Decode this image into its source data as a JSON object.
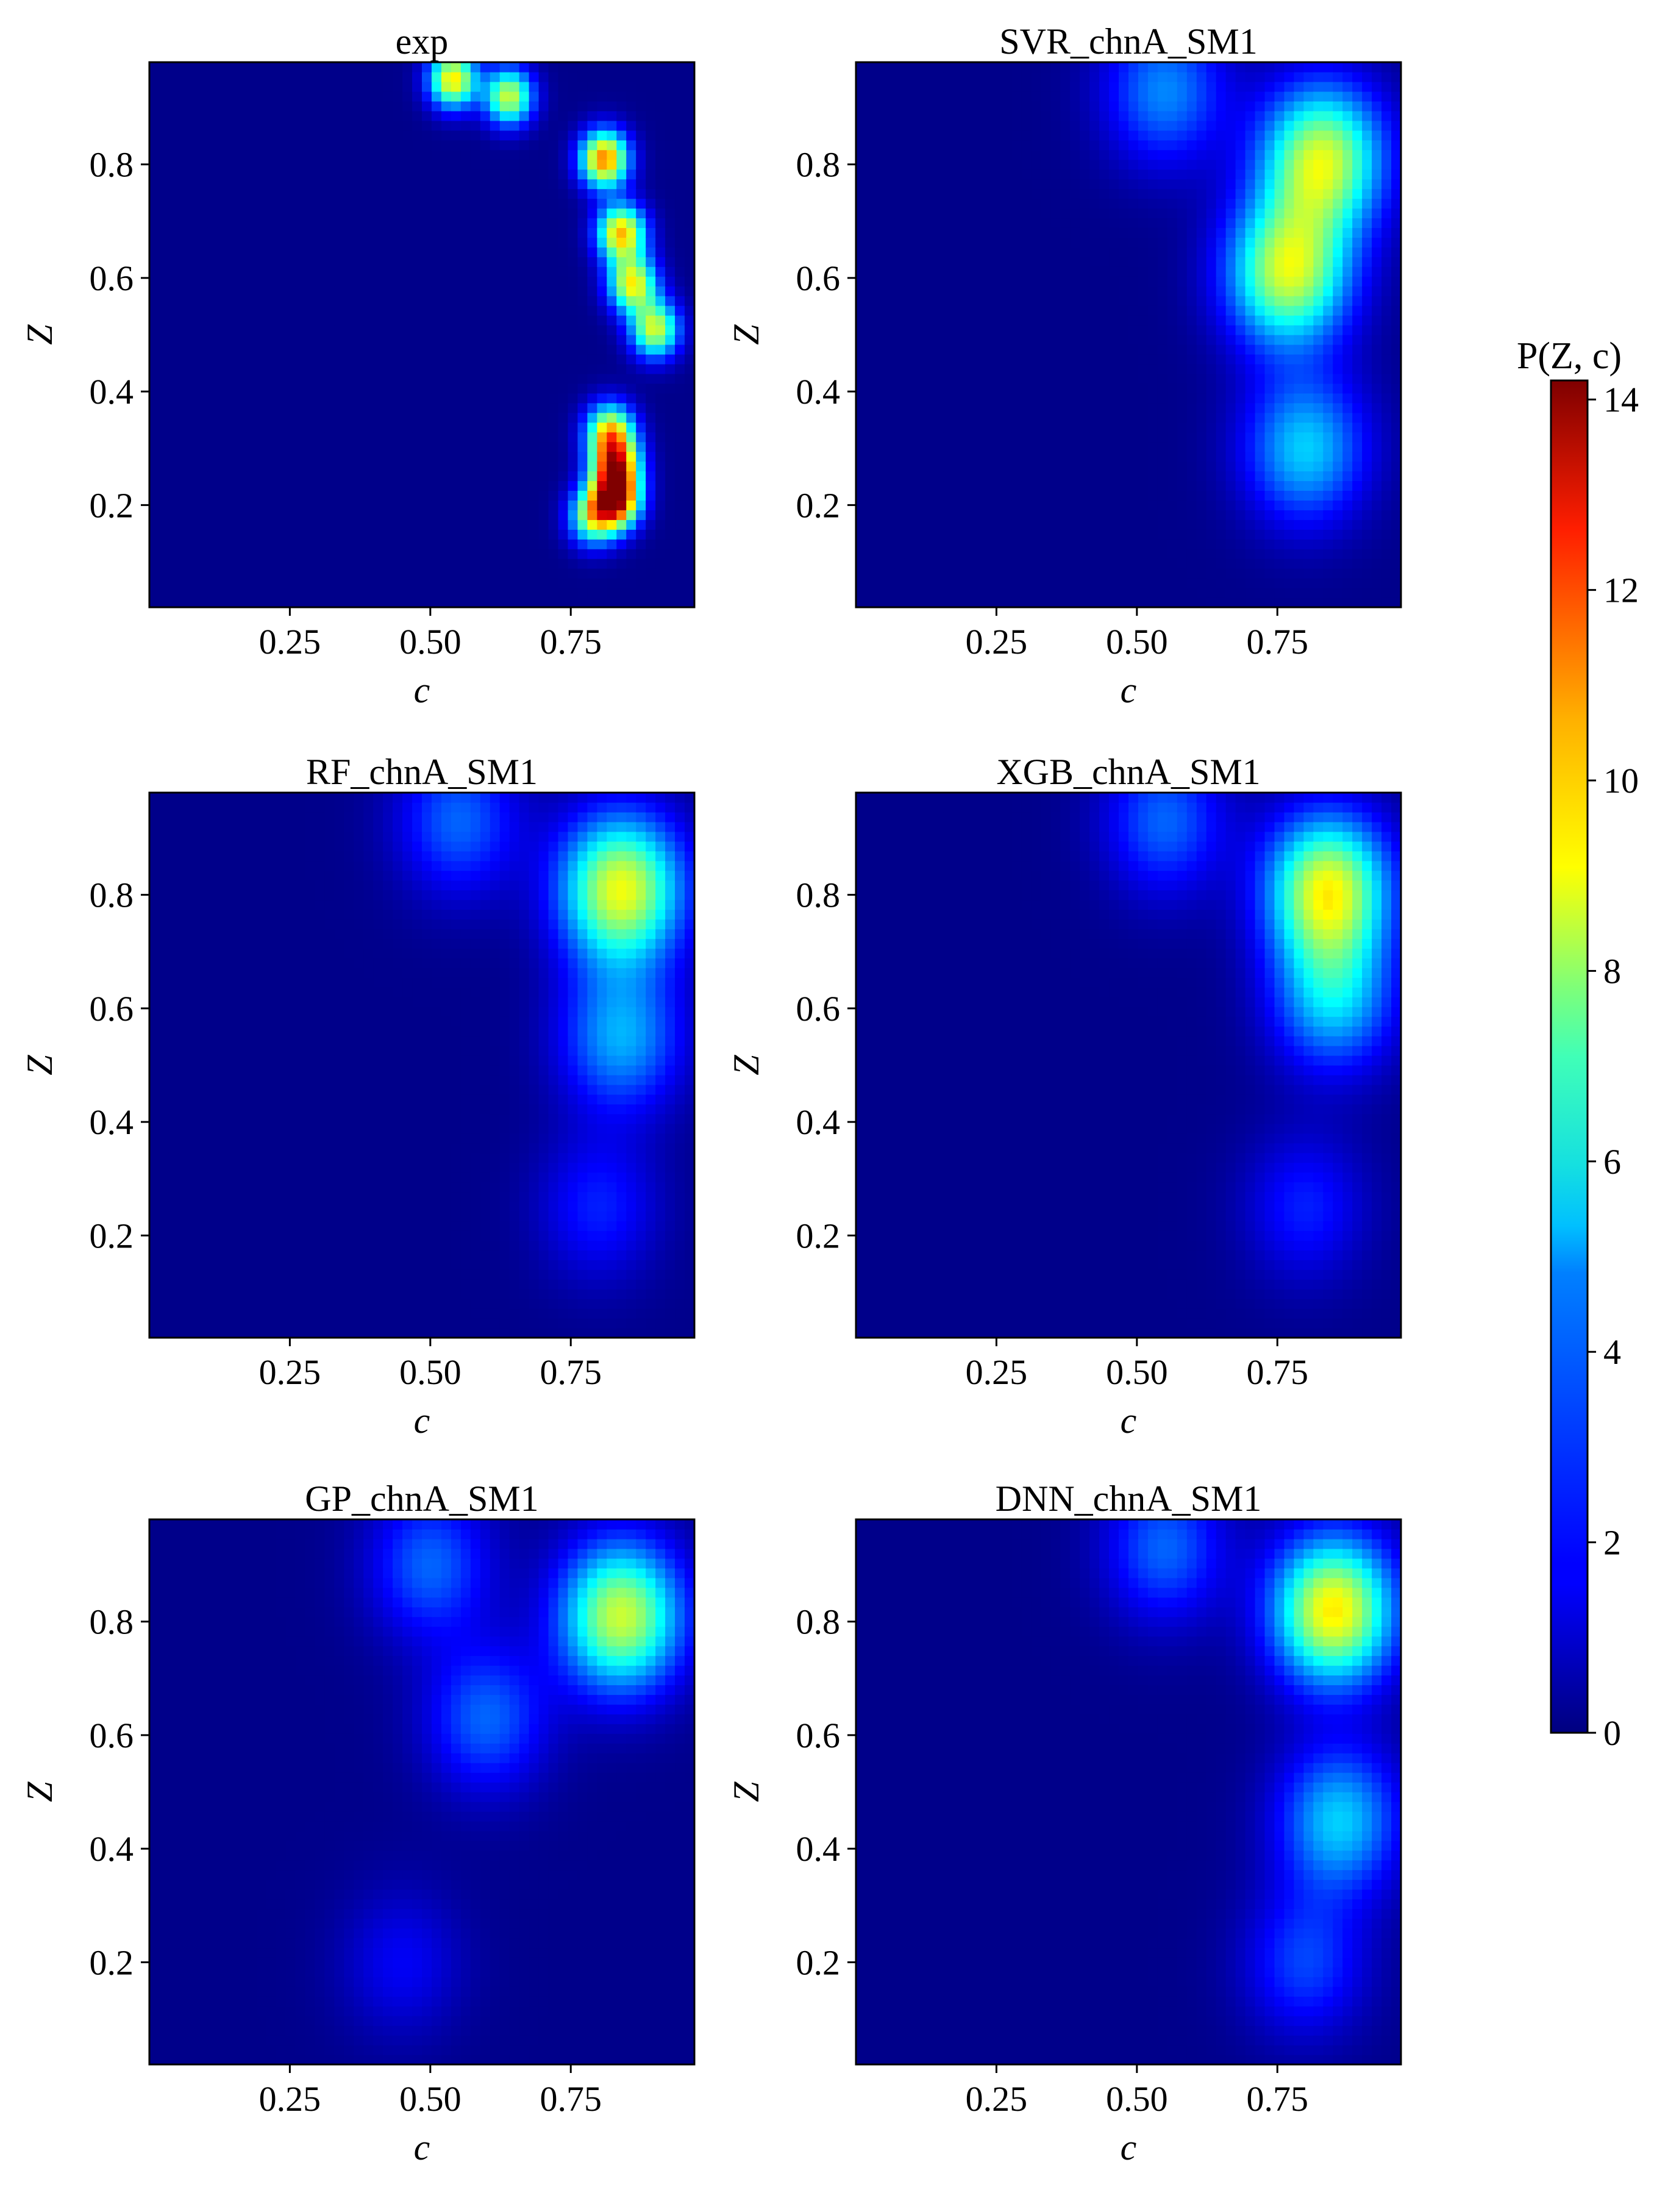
{
  "chart_data": {
    "type": "heatmap",
    "panel_xlabel": "c",
    "panel_ylabel": "Z",
    "xlim": [
      0.0,
      0.97
    ],
    "ylim": [
      0.02,
      0.98
    ],
    "xticks": [
      "0.25",
      "0.50",
      "0.75"
    ],
    "xtick_values": [
      0.25,
      0.5,
      0.75
    ],
    "yticks": [
      "0.2",
      "0.4",
      "0.6",
      "0.8"
    ],
    "ytick_values": [
      0.2,
      0.4,
      0.6,
      0.8
    ],
    "colormap": "jet",
    "colorbar": {
      "label": "P(Z, c)",
      "min": 0,
      "max": 14.2,
      "ticks": [
        "0",
        "2",
        "4",
        "6",
        "8",
        "10",
        "12",
        "14"
      ],
      "tick_values": [
        0,
        2,
        4,
        6,
        8,
        10,
        12,
        14
      ]
    },
    "grid": false,
    "panels": [
      {
        "title": "exp",
        "peaks": [
          {
            "c": 0.81,
            "z": 0.81,
            "p": 10.5
          },
          {
            "c": 0.83,
            "z": 0.21,
            "p": 12.0
          },
          {
            "c": 0.83,
            "z": 0.27,
            "p": 10.0
          },
          {
            "c": 0.84,
            "z": 0.68,
            "p": 9.5
          },
          {
            "c": 0.86,
            "z": 0.59,
            "p": 8.5
          },
          {
            "c": 0.54,
            "z": 0.95,
            "p": 9.0
          },
          {
            "c": 0.64,
            "z": 0.92,
            "p": 8.0
          },
          {
            "c": 0.82,
            "z": 0.33,
            "p": 8.5
          },
          {
            "c": 0.9,
            "z": 0.51,
            "p": 8.0
          },
          {
            "c": 0.79,
            "z": 0.18,
            "p": 7.0
          }
        ]
      },
      {
        "title": "SVR_chnA_SM1",
        "peaks": [
          {
            "c": 0.83,
            "z": 0.81,
            "p": 8.0
          },
          {
            "c": 0.77,
            "z": 0.61,
            "p": 8.0
          },
          {
            "c": 0.8,
            "z": 0.3,
            "p": 4.5
          },
          {
            "c": 0.55,
            "z": 0.93,
            "p": 3.5
          }
        ]
      },
      {
        "title": "RF_chnA_SM1",
        "peaks": [
          {
            "c": 0.84,
            "z": 0.81,
            "p": 8.5
          },
          {
            "c": 0.84,
            "z": 0.55,
            "p": 4.0
          },
          {
            "c": 0.8,
            "z": 0.25,
            "p": 2.0
          },
          {
            "c": 0.55,
            "z": 0.93,
            "p": 3.0
          }
        ]
      },
      {
        "title": "XGB_chnA_SM1",
        "peaks": [
          {
            "c": 0.84,
            "z": 0.81,
            "p": 8.5
          },
          {
            "c": 0.85,
            "z": 0.62,
            "p": 4.5
          },
          {
            "c": 0.8,
            "z": 0.25,
            "p": 2.0
          },
          {
            "c": 0.55,
            "z": 0.93,
            "p": 3.0
          }
        ]
      },
      {
        "title": "GP_chnA_SM1",
        "peaks": [
          {
            "c": 0.84,
            "z": 0.81,
            "p": 8.0
          },
          {
            "c": 0.6,
            "z": 0.63,
            "p": 3.0
          },
          {
            "c": 0.45,
            "z": 0.2,
            "p": 1.5
          },
          {
            "c": 0.5,
            "z": 0.9,
            "p": 3.0
          }
        ]
      },
      {
        "title": "DNN_chnA_SM1",
        "peaks": [
          {
            "c": 0.85,
            "z": 0.82,
            "p": 9.0
          },
          {
            "c": 0.86,
            "z": 0.45,
            "p": 4.5
          },
          {
            "c": 0.8,
            "z": 0.2,
            "p": 2.5
          },
          {
            "c": 0.55,
            "z": 0.93,
            "p": 3.0
          }
        ]
      }
    ]
  }
}
